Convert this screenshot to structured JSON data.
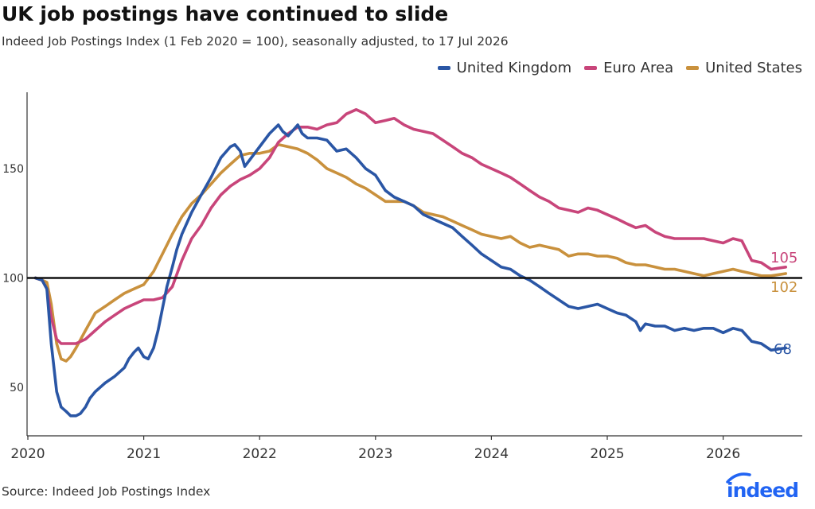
{
  "title": "UK job postings have continued to slide",
  "subtitle": "Indeed Job Postings Index (1 Feb 2020 = 100), seasonally adjusted, to 17 Jul 2026",
  "source": "Source: Indeed Job Postings Index",
  "brand": {
    "name": "indeed",
    "color": "#2164f3"
  },
  "chart_data": {
    "type": "line",
    "x_ticks": [
      "2020",
      "2021",
      "2022",
      "2023",
      "2024",
      "2025",
      "2026"
    ],
    "y_ticks": [
      50,
      100,
      150
    ],
    "xlim": [
      "2020-01",
      "2026-12"
    ],
    "ylim": [
      30,
      180
    ],
    "reference_line": 100,
    "grid": false,
    "legend_position": "top-right",
    "series": [
      {
        "name": "United Kingdom",
        "color": "#2a56a5",
        "end_label": "68",
        "points": [
          [
            "2020-01-25",
            100
          ],
          [
            "2020-02-15",
            99
          ],
          [
            "2020-03-01",
            95
          ],
          [
            "2020-03-15",
            70
          ],
          [
            "2020-04-01",
            48
          ],
          [
            "2020-04-15",
            41
          ],
          [
            "2020-05-01",
            39
          ],
          [
            "2020-05-15",
            37
          ],
          [
            "2020-06-01",
            37
          ],
          [
            "2020-06-15",
            38
          ],
          [
            "2020-07-01",
            41
          ],
          [
            "2020-07-15",
            45
          ],
          [
            "2020-08-01",
            48
          ],
          [
            "2020-09-01",
            52
          ],
          [
            "2020-10-01",
            55
          ],
          [
            "2020-11-01",
            59
          ],
          [
            "2020-11-15",
            63
          ],
          [
            "2020-12-01",
            66
          ],
          [
            "2020-12-15",
            68
          ],
          [
            "2021-01-01",
            64
          ],
          [
            "2021-01-15",
            63
          ],
          [
            "2021-02-01",
            68
          ],
          [
            "2021-02-15",
            76
          ],
          [
            "2021-03-01",
            86
          ],
          [
            "2021-03-15",
            96
          ],
          [
            "2021-04-01",
            105
          ],
          [
            "2021-04-15",
            113
          ],
          [
            "2021-05-01",
            120
          ],
          [
            "2021-06-01",
            130
          ],
          [
            "2021-07-01",
            138
          ],
          [
            "2021-08-01",
            146
          ],
          [
            "2021-09-01",
            155
          ],
          [
            "2021-10-01",
            160
          ],
          [
            "2021-10-15",
            161
          ],
          [
            "2021-11-01",
            158
          ],
          [
            "2021-11-15",
            151
          ],
          [
            "2021-12-01",
            154
          ],
          [
            "2022-01-01",
            160
          ],
          [
            "2022-02-01",
            166
          ],
          [
            "2022-03-01",
            170
          ],
          [
            "2022-03-15",
            167
          ],
          [
            "2022-04-01",
            165
          ],
          [
            "2022-05-01",
            170
          ],
          [
            "2022-05-15",
            166
          ],
          [
            "2022-06-01",
            164
          ],
          [
            "2022-07-01",
            164
          ],
          [
            "2022-08-01",
            163
          ],
          [
            "2022-09-01",
            158
          ],
          [
            "2022-10-01",
            159
          ],
          [
            "2022-11-01",
            155
          ],
          [
            "2022-12-01",
            150
          ],
          [
            "2023-01-01",
            147
          ],
          [
            "2023-02-01",
            140
          ],
          [
            "2023-03-01",
            137
          ],
          [
            "2023-04-01",
            135
          ],
          [
            "2023-05-01",
            133
          ],
          [
            "2023-06-01",
            129
          ],
          [
            "2023-07-01",
            127
          ],
          [
            "2023-08-01",
            125
          ],
          [
            "2023-09-01",
            123
          ],
          [
            "2023-10-01",
            119
          ],
          [
            "2023-11-01",
            115
          ],
          [
            "2023-12-01",
            111
          ],
          [
            "2024-01-01",
            108
          ],
          [
            "2024-02-01",
            105
          ],
          [
            "2024-03-01",
            104
          ],
          [
            "2024-04-01",
            101
          ],
          [
            "2024-05-01",
            99
          ],
          [
            "2024-06-01",
            96
          ],
          [
            "2024-07-01",
            93
          ],
          [
            "2024-08-01",
            90
          ],
          [
            "2024-09-01",
            87
          ],
          [
            "2024-10-01",
            86
          ],
          [
            "2024-11-01",
            87
          ],
          [
            "2024-12-01",
            88
          ],
          [
            "2025-01-01",
            86
          ],
          [
            "2025-02-01",
            84
          ],
          [
            "2025-03-01",
            83
          ],
          [
            "2025-04-01",
            80
          ],
          [
            "2025-04-15",
            76
          ],
          [
            "2025-05-01",
            79
          ],
          [
            "2025-06-01",
            78
          ],
          [
            "2025-07-01",
            78
          ],
          [
            "2025-08-01",
            76
          ],
          [
            "2025-09-01",
            77
          ],
          [
            "2025-10-01",
            76
          ],
          [
            "2025-11-01",
            77
          ],
          [
            "2025-12-01",
            77
          ],
          [
            "2026-01-01",
            75
          ],
          [
            "2026-02-01",
            77
          ],
          [
            "2026-03-01",
            76
          ],
          [
            "2026-04-01",
            71
          ],
          [
            "2026-05-01",
            70
          ],
          [
            "2026-06-01",
            67
          ],
          [
            "2026-07-17",
            68
          ]
        ]
      },
      {
        "name": "Euro Area",
        "color": "#c8457a",
        "end_label": "105",
        "points": [
          [
            "2020-01-25",
            100
          ],
          [
            "2020-02-15",
            99
          ],
          [
            "2020-03-01",
            95
          ],
          [
            "2020-03-15",
            82
          ],
          [
            "2020-04-01",
            72
          ],
          [
            "2020-04-15",
            70
          ],
          [
            "2020-05-01",
            70
          ],
          [
            "2020-06-01",
            70
          ],
          [
            "2020-07-01",
            72
          ],
          [
            "2020-08-01",
            76
          ],
          [
            "2020-09-01",
            80
          ],
          [
            "2020-10-01",
            83
          ],
          [
            "2020-11-01",
            86
          ],
          [
            "2020-12-01",
            88
          ],
          [
            "2021-01-01",
            90
          ],
          [
            "2021-02-01",
            90
          ],
          [
            "2021-03-01",
            91
          ],
          [
            "2021-04-01",
            96
          ],
          [
            "2021-05-01",
            108
          ],
          [
            "2021-06-01",
            118
          ],
          [
            "2021-07-01",
            124
          ],
          [
            "2021-08-01",
            132
          ],
          [
            "2021-09-01",
            138
          ],
          [
            "2021-10-01",
            142
          ],
          [
            "2021-11-01",
            145
          ],
          [
            "2021-12-01",
            147
          ],
          [
            "2022-01-01",
            150
          ],
          [
            "2022-02-01",
            155
          ],
          [
            "2022-03-01",
            162
          ],
          [
            "2022-04-01",
            166
          ],
          [
            "2022-05-01",
            169
          ],
          [
            "2022-06-01",
            169
          ],
          [
            "2022-07-01",
            168
          ],
          [
            "2022-08-01",
            170
          ],
          [
            "2022-09-01",
            171
          ],
          [
            "2022-10-01",
            175
          ],
          [
            "2022-11-01",
            177
          ],
          [
            "2022-12-01",
            175
          ],
          [
            "2023-01-01",
            171
          ],
          [
            "2023-02-01",
            172
          ],
          [
            "2023-03-01",
            173
          ],
          [
            "2023-04-01",
            170
          ],
          [
            "2023-05-01",
            168
          ],
          [
            "2023-06-01",
            167
          ],
          [
            "2023-07-01",
            166
          ],
          [
            "2023-08-01",
            163
          ],
          [
            "2023-09-01",
            160
          ],
          [
            "2023-10-01",
            157
          ],
          [
            "2023-11-01",
            155
          ],
          [
            "2023-12-01",
            152
          ],
          [
            "2024-01-01",
            150
          ],
          [
            "2024-02-01",
            148
          ],
          [
            "2024-03-01",
            146
          ],
          [
            "2024-04-01",
            143
          ],
          [
            "2024-05-01",
            140
          ],
          [
            "2024-06-01",
            137
          ],
          [
            "2024-07-01",
            135
          ],
          [
            "2024-08-01",
            132
          ],
          [
            "2024-09-01",
            131
          ],
          [
            "2024-10-01",
            130
          ],
          [
            "2024-11-01",
            132
          ],
          [
            "2024-12-01",
            131
          ],
          [
            "2025-01-01",
            129
          ],
          [
            "2025-02-01",
            127
          ],
          [
            "2025-03-01",
            125
          ],
          [
            "2025-04-01",
            123
          ],
          [
            "2025-05-01",
            124
          ],
          [
            "2025-06-01",
            121
          ],
          [
            "2025-07-01",
            119
          ],
          [
            "2025-08-01",
            118
          ],
          [
            "2025-09-01",
            118
          ],
          [
            "2025-10-01",
            118
          ],
          [
            "2025-11-01",
            118
          ],
          [
            "2025-12-01",
            117
          ],
          [
            "2026-01-01",
            116
          ],
          [
            "2026-02-01",
            118
          ],
          [
            "2026-03-01",
            117
          ],
          [
            "2026-04-01",
            108
          ],
          [
            "2026-05-01",
            107
          ],
          [
            "2026-06-01",
            104
          ],
          [
            "2026-07-17",
            105
          ]
        ]
      },
      {
        "name": "United States",
        "color": "#c9913d",
        "end_label": "102",
        "points": [
          [
            "2020-01-25",
            100
          ],
          [
            "2020-02-15",
            99
          ],
          [
            "2020-03-01",
            98
          ],
          [
            "2020-03-15",
            88
          ],
          [
            "2020-04-01",
            70
          ],
          [
            "2020-04-15",
            63
          ],
          [
            "2020-05-01",
            62
          ],
          [
            "2020-05-15",
            64
          ],
          [
            "2020-06-01",
            68
          ],
          [
            "2020-07-01",
            76
          ],
          [
            "2020-08-01",
            84
          ],
          [
            "2020-09-01",
            87
          ],
          [
            "2020-10-01",
            90
          ],
          [
            "2020-11-01",
            93
          ],
          [
            "2020-12-01",
            95
          ],
          [
            "2021-01-01",
            97
          ],
          [
            "2021-02-01",
            103
          ],
          [
            "2021-03-01",
            111
          ],
          [
            "2021-04-01",
            120
          ],
          [
            "2021-05-01",
            128
          ],
          [
            "2021-06-01",
            134
          ],
          [
            "2021-07-01",
            138
          ],
          [
            "2021-08-01",
            143
          ],
          [
            "2021-09-01",
            148
          ],
          [
            "2021-10-01",
            152
          ],
          [
            "2021-11-01",
            156
          ],
          [
            "2021-12-01",
            157
          ],
          [
            "2022-01-01",
            157
          ],
          [
            "2022-02-01",
            158
          ],
          [
            "2022-03-01",
            161
          ],
          [
            "2022-04-01",
            160
          ],
          [
            "2022-05-01",
            159
          ],
          [
            "2022-06-01",
            157
          ],
          [
            "2022-07-01",
            154
          ],
          [
            "2022-08-01",
            150
          ],
          [
            "2022-09-01",
            148
          ],
          [
            "2022-10-01",
            146
          ],
          [
            "2022-11-01",
            143
          ],
          [
            "2022-12-01",
            141
          ],
          [
            "2023-01-01",
            138
          ],
          [
            "2023-02-01",
            135
          ],
          [
            "2023-03-01",
            135
          ],
          [
            "2023-04-01",
            135
          ],
          [
            "2023-05-01",
            133
          ],
          [
            "2023-06-01",
            130
          ],
          [
            "2023-07-01",
            129
          ],
          [
            "2023-08-01",
            128
          ],
          [
            "2023-09-01",
            126
          ],
          [
            "2023-10-01",
            124
          ],
          [
            "2023-11-01",
            122
          ],
          [
            "2023-12-01",
            120
          ],
          [
            "2024-01-01",
            119
          ],
          [
            "2024-02-01",
            118
          ],
          [
            "2024-03-01",
            119
          ],
          [
            "2024-04-01",
            116
          ],
          [
            "2024-05-01",
            114
          ],
          [
            "2024-06-01",
            115
          ],
          [
            "2024-07-01",
            114
          ],
          [
            "2024-08-01",
            113
          ],
          [
            "2024-09-01",
            110
          ],
          [
            "2024-10-01",
            111
          ],
          [
            "2024-11-01",
            111
          ],
          [
            "2024-12-01",
            110
          ],
          [
            "2025-01-01",
            110
          ],
          [
            "2025-02-01",
            109
          ],
          [
            "2025-03-01",
            107
          ],
          [
            "2025-04-01",
            106
          ],
          [
            "2025-05-01",
            106
          ],
          [
            "2025-06-01",
            105
          ],
          [
            "2025-07-01",
            104
          ],
          [
            "2025-08-01",
            104
          ],
          [
            "2025-09-01",
            103
          ],
          [
            "2025-10-01",
            102
          ],
          [
            "2025-11-01",
            101
          ],
          [
            "2025-12-01",
            102
          ],
          [
            "2026-01-01",
            103
          ],
          [
            "2026-02-01",
            104
          ],
          [
            "2026-03-01",
            103
          ],
          [
            "2026-04-01",
            102
          ],
          [
            "2026-05-01",
            101
          ],
          [
            "2026-06-01",
            101
          ],
          [
            "2026-07-17",
            102
          ]
        ]
      }
    ]
  }
}
